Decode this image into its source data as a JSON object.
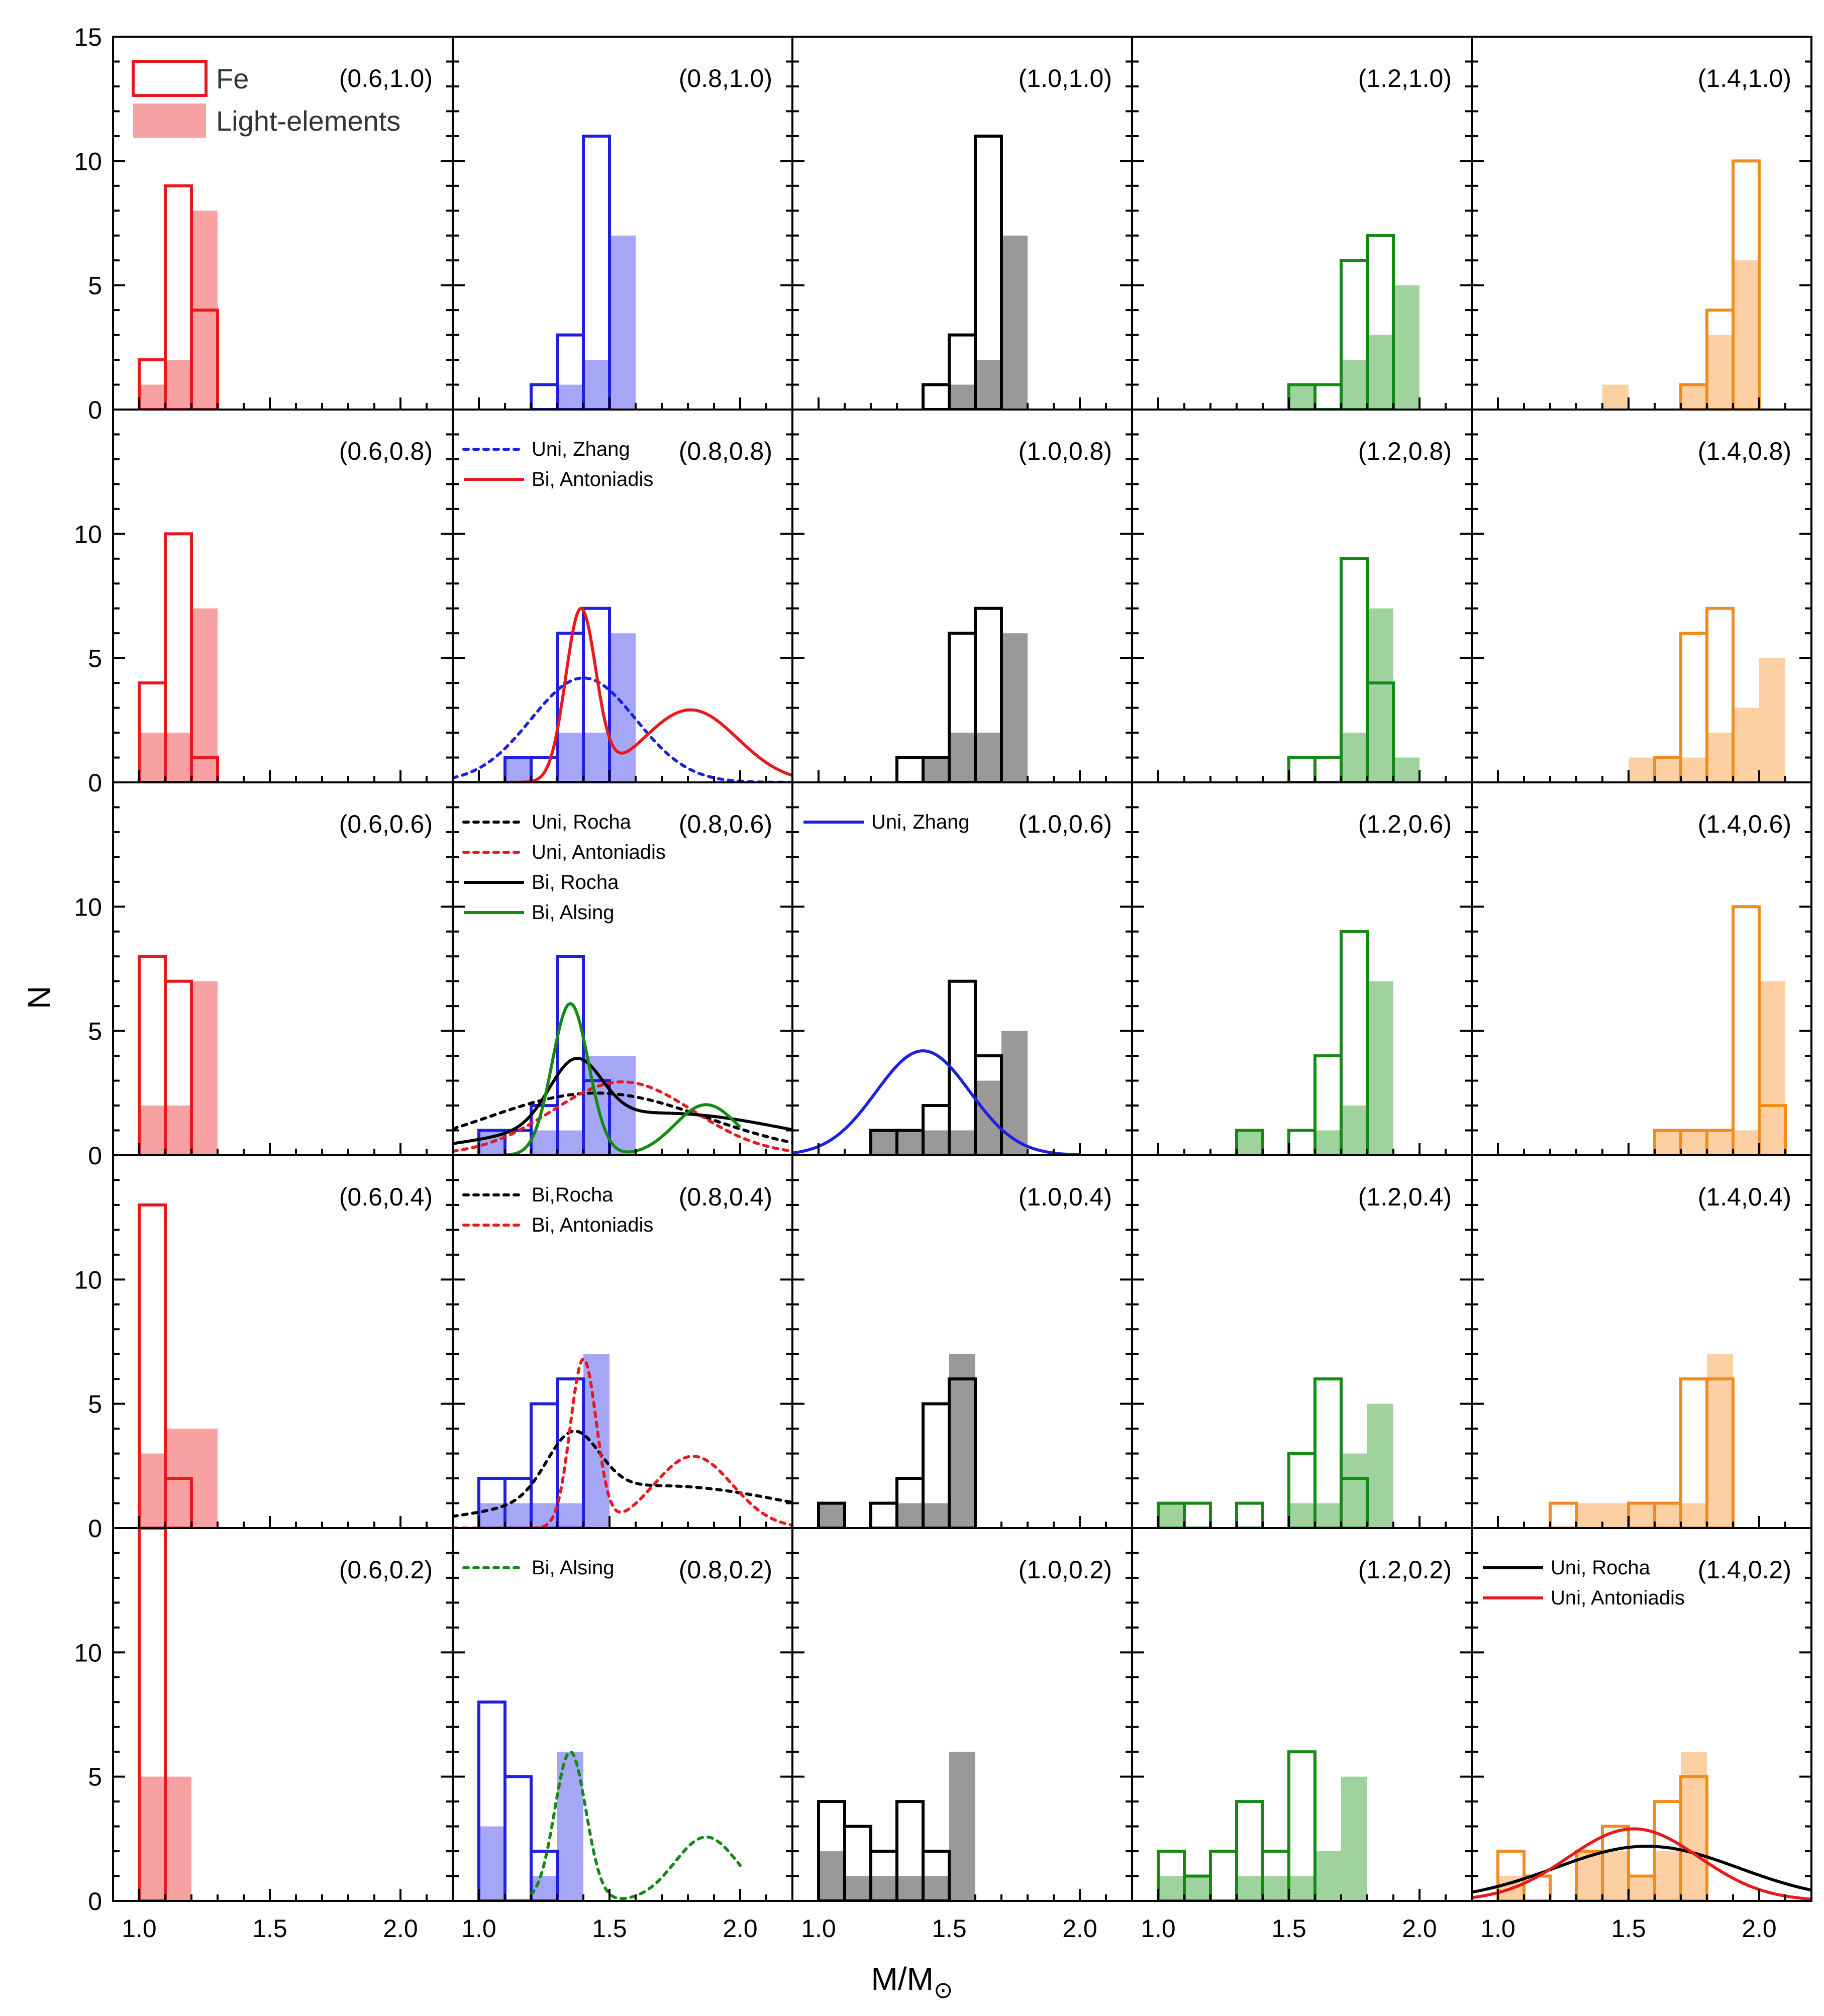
{
  "chart_data": {
    "type": "bar",
    "xlabel": "M/M",
    "xlabel_sub": "⊙",
    "ylabel": "N",
    "xlim": [
      0.9,
      2.2
    ],
    "ylim": [
      0,
      15
    ],
    "bin_width": 0.1,
    "xticks": [
      "1.0",
      "1.5",
      "2.0"
    ],
    "yticks": [
      "0",
      "5",
      "10",
      "15"
    ],
    "columns": [
      "0.6",
      "0.8",
      "1.0",
      "1.2",
      "1.4"
    ],
    "rows": [
      "1.0",
      "0.8",
      "0.6",
      "0.4",
      "0.2"
    ],
    "colors": {
      "0.6": "#e8191d",
      "0.8": "#1f1fe0",
      "1.0": "#000000",
      "1.2": "#138a13",
      "1.4": "#f08c1e"
    },
    "fill_colors": {
      "0.6": "#f7a1a3",
      "0.8": "#a6a6f7",
      "1.0": "#999999",
      "1.2": "#9ed39e",
      "1.4": "#fcd0a3"
    },
    "series_names": {
      "fe": "Fe",
      "light": "Light-elements"
    },
    "panels": [
      {
        "label": "(0.6,1.0)",
        "col": 0,
        "row": 0,
        "fe_start": 1.0,
        "fe": [
          2,
          9,
          4
        ],
        "light_start": 1.0,
        "light": [
          1,
          2,
          8
        ]
      },
      {
        "label": "(0.8,1.0)",
        "col": 1,
        "row": 0,
        "fe_start": 1.2,
        "fe": [
          1,
          3,
          11
        ],
        "light_start": 1.3,
        "light": [
          1,
          2,
          7
        ]
      },
      {
        "label": "(1.0,1.0)",
        "col": 2,
        "row": 0,
        "fe_start": 1.4,
        "fe": [
          1,
          3,
          11
        ],
        "light_start": 1.5,
        "light": [
          1,
          2,
          7
        ]
      },
      {
        "label": "(1.2,1.0)",
        "col": 3,
        "row": 0,
        "fe_start": 1.5,
        "fe": [
          1,
          1,
          6,
          7
        ],
        "light_start": 1.5,
        "light": [
          1,
          0,
          2,
          3,
          5
        ]
      },
      {
        "label": "(1.4,1.0)",
        "col": 4,
        "row": 0,
        "fe_start": 1.7,
        "fe": [
          1,
          4,
          10
        ],
        "light_start": 1.4,
        "light": [
          1,
          0,
          0,
          1,
          3,
          6
        ]
      },
      {
        "label": "(0.6,0.8)",
        "col": 0,
        "row": 1,
        "fe_start": 1.0,
        "fe": [
          4,
          10,
          1
        ],
        "light_start": 1.0,
        "light": [
          2,
          2,
          7
        ]
      },
      {
        "label": "(0.8,0.8)",
        "col": 1,
        "row": 1,
        "fe_start": 1.1,
        "fe": [
          1,
          1,
          6,
          7
        ],
        "light_start": 1.1,
        "light": [
          1,
          0,
          2,
          2,
          6
        ],
        "legend": [
          {
            "label": "Uni, Zhang",
            "color": "#1f1fe0",
            "dash": true
          },
          {
            "label": "Bi, Antoniadis",
            "color": "#e8191d",
            "dash": false
          }
        ],
        "curves": [
          {
            "color": "#1f1fe0",
            "dash": true,
            "comps": [
              [
                1.0,
                1.4,
                0.2
              ]
            ],
            "scale": 4.2
          },
          {
            "color": "#e8191d",
            "dash": false,
            "comps": [
              [
                0.7,
                1.39,
                0.058
              ],
              [
                0.3,
                1.81,
                0.18
              ]
            ],
            "scale": 7.0
          }
        ]
      },
      {
        "label": "(1.0,0.8)",
        "col": 2,
        "row": 1,
        "fe_start": 1.3,
        "fe": [
          1,
          1,
          6,
          7
        ],
        "light_start": 1.4,
        "light": [
          1,
          2,
          2,
          6
        ]
      },
      {
        "label": "(1.2,0.8)",
        "col": 3,
        "row": 1,
        "fe_start": 1.5,
        "fe": [
          1,
          1,
          9,
          4
        ],
        "light_start": 1.7,
        "light": [
          2,
          7,
          1
        ]
      },
      {
        "label": "(1.4,0.8)",
        "col": 4,
        "row": 1,
        "fe_start": 1.6,
        "fe": [
          1,
          6,
          7
        ],
        "light_start": 1.5,
        "light": [
          1,
          1,
          1,
          2,
          3,
          5
        ]
      },
      {
        "label": "(0.6,0.6)",
        "col": 0,
        "row": 2,
        "fe_start": 1.0,
        "fe": [
          8,
          7
        ],
        "light_start": 1.0,
        "light": [
          2,
          2,
          7
        ]
      },
      {
        "label": "(0.8,0.6)",
        "col": 1,
        "row": 2,
        "fe_start": 1.0,
        "fe": [
          1,
          1,
          2,
          8,
          3
        ],
        "light_start": 1.0,
        "light": [
          1,
          0,
          1,
          1,
          4,
          4
        ],
        "legend": [
          {
            "label": "Uni, Rocha",
            "color": "#000000",
            "dash": true
          },
          {
            "label": "Uni, Antoniadis",
            "color": "#e8191d",
            "dash": true
          },
          {
            "label": "Bi, Rocha",
            "color": "#000000",
            "dash": false
          },
          {
            "label": "Bi, Alsing",
            "color": "#138a13",
            "dash": false
          }
        ],
        "curves": [
          {
            "color": "#000000",
            "dash": true,
            "comps": [
              [
                1.0,
                1.45,
                0.42
              ]
            ],
            "scale": 2.5
          },
          {
            "color": "#e8191d",
            "dash": true,
            "comps": [
              [
                1.0,
                1.55,
                0.27
              ]
            ],
            "scale": 2.95
          },
          {
            "color": "#000000",
            "dash": false,
            "comps": [
              [
                0.6,
                1.37,
                0.1
              ],
              [
                0.4,
                1.7,
                0.5
              ]
            ],
            "scale": 3.9
          },
          {
            "color": "#138a13",
            "dash": false,
            "comps": [
              [
                0.75,
                1.35,
                0.07
              ],
              [
                0.25,
                1.87,
                0.12
              ]
            ],
            "scale": 6.1,
            "xmax": 2.0
          }
        ]
      },
      {
        "label": "(1.0,0.6)",
        "col": 2,
        "row": 2,
        "fe_start": 1.2,
        "fe": [
          1,
          1,
          2,
          7,
          4
        ],
        "light_start": 1.2,
        "light": [
          1,
          1,
          1,
          1,
          3,
          5
        ],
        "legend": [
          {
            "label": "Uni, Zhang",
            "color": "#1f1fe0",
            "dash": false
          }
        ],
        "curves": [
          {
            "color": "#1f1fe0",
            "dash": false,
            "comps": [
              [
                1.0,
                1.4,
                0.18
              ]
            ],
            "scale": 4.2,
            "xmin": 0.9,
            "xmax": 2.0
          }
        ]
      },
      {
        "label": "(1.2,0.6)",
        "col": 3,
        "row": 2,
        "fe_start": 1.3,
        "fe": [
          1,
          0,
          1,
          4,
          9
        ],
        "light_start": 1.3,
        "light": [
          1,
          0,
          0,
          1,
          2,
          7
        ]
      },
      {
        "label": "(1.4,0.6)",
        "col": 4,
        "row": 2,
        "fe_start": 1.6,
        "fe": [
          1,
          1,
          1,
          10,
          2
        ],
        "light_start": 1.6,
        "light": [
          1,
          1,
          1,
          1,
          7
        ]
      },
      {
        "label": "(0.6,0.4)",
        "col": 0,
        "row": 3,
        "fe_start": 1.0,
        "fe": [
          13,
          2
        ],
        "light_start": 1.0,
        "light": [
          3,
          4,
          4
        ]
      },
      {
        "label": "(0.8,0.4)",
        "col": 1,
        "row": 3,
        "fe_start": 1.0,
        "fe": [
          2,
          2,
          5,
          6
        ],
        "light_start": 1.0,
        "light": [
          1,
          1,
          1,
          1,
          7
        ],
        "legend": [
          {
            "label": "Bi,Rocha",
            "color": "#000000",
            "dash": true
          },
          {
            "label": "Bi, Antoniadis",
            "color": "#e8191d",
            "dash": true
          }
        ],
        "curves": [
          {
            "color": "#000000",
            "dash": true,
            "comps": [
              [
                0.6,
                1.36,
                0.1
              ],
              [
                0.4,
                1.7,
                0.5
              ]
            ],
            "scale": 3.9
          },
          {
            "color": "#e8191d",
            "dash": true,
            "comps": [
              [
                0.7,
                1.4,
                0.05
              ],
              [
                0.3,
                1.82,
                0.15
              ]
            ],
            "scale": 6.8
          }
        ]
      },
      {
        "label": "(1.0,0.4)",
        "col": 2,
        "row": 3,
        "fe_start": 1.0,
        "fe": [
          1,
          0,
          1,
          2,
          5,
          6
        ],
        "light_start": 1.0,
        "light": [
          1,
          0,
          0,
          1,
          1,
          7
        ]
      },
      {
        "label": "(1.2,0.4)",
        "col": 3,
        "row": 3,
        "fe_start": 1.0,
        "fe": [
          1,
          1,
          0,
          1,
          0,
          3,
          6,
          2
        ],
        "light_start": 1.0,
        "light": [
          1,
          0,
          0,
          0,
          0,
          1,
          1,
          3,
          5
        ]
      },
      {
        "label": "(1.4,0.4)",
        "col": 4,
        "row": 3,
        "fe_start": 1.2,
        "fe": [
          1,
          0,
          0,
          1,
          1,
          6,
          6
        ],
        "light_start": 1.3,
        "light": [
          1,
          1,
          1,
          1,
          1,
          7
        ]
      },
      {
        "label": "(0.6,0.2)",
        "col": 0,
        "row": 4,
        "fe_start": 1.0,
        "fe": [
          15
        ],
        "light_start": 1.0,
        "light": [
          5,
          5
        ]
      },
      {
        "label": "(0.8,0.2)",
        "col": 1,
        "row": 4,
        "fe_start": 1.0,
        "fe": [
          8,
          5,
          2
        ],
        "light_start": 1.0,
        "light": [
          3,
          0,
          1,
          6
        ],
        "legend": [
          {
            "label": "Bi, Alsing",
            "color": "#138a13",
            "dash": true
          }
        ],
        "curves": [
          {
            "color": "#138a13",
            "dash": true,
            "comps": [
              [
                0.7,
                1.35,
                0.06
              ],
              [
                0.3,
                1.87,
                0.12
              ]
            ],
            "scale": 6.0,
            "xmin": 1.2,
            "xmax": 2.0
          }
        ]
      },
      {
        "label": "(1.0,0.2)",
        "col": 2,
        "row": 4,
        "fe_start": 1.0,
        "fe": [
          4,
          3,
          2,
          4,
          2
        ],
        "light_start": 1.0,
        "light": [
          2,
          1,
          1,
          1,
          1,
          6
        ]
      },
      {
        "label": "(1.2,0.2)",
        "col": 3,
        "row": 4,
        "fe_start": 1.0,
        "fe": [
          2,
          1,
          2,
          4,
          2,
          6
        ],
        "light_start": 1.0,
        "light": [
          1,
          1,
          0,
          1,
          1,
          1,
          2,
          5
        ]
      },
      {
        "label": "(1.4,0.2)",
        "col": 4,
        "row": 4,
        "fe_start": 1.0,
        "fe": [
          2,
          1,
          0,
          2,
          3,
          1,
          4,
          5
        ],
        "light_start": 1.0,
        "light": [
          1,
          0,
          0,
          2,
          2,
          1,
          2,
          6
        ],
        "legend": [
          {
            "label": "Uni, Rocha",
            "color": "#000000",
            "dash": false
          },
          {
            "label": "Uni, Antoniadis",
            "color": "#e8191d",
            "dash": false
          }
        ],
        "curves": [
          {
            "color": "#000000",
            "dash": false,
            "comps": [
              [
                1.0,
                1.57,
                0.35
              ]
            ],
            "scale": 2.2
          },
          {
            "color": "#e8191d",
            "dash": false,
            "comps": [
              [
                1.0,
                1.52,
                0.25
              ]
            ],
            "scale": 2.9
          }
        ]
      }
    ]
  }
}
